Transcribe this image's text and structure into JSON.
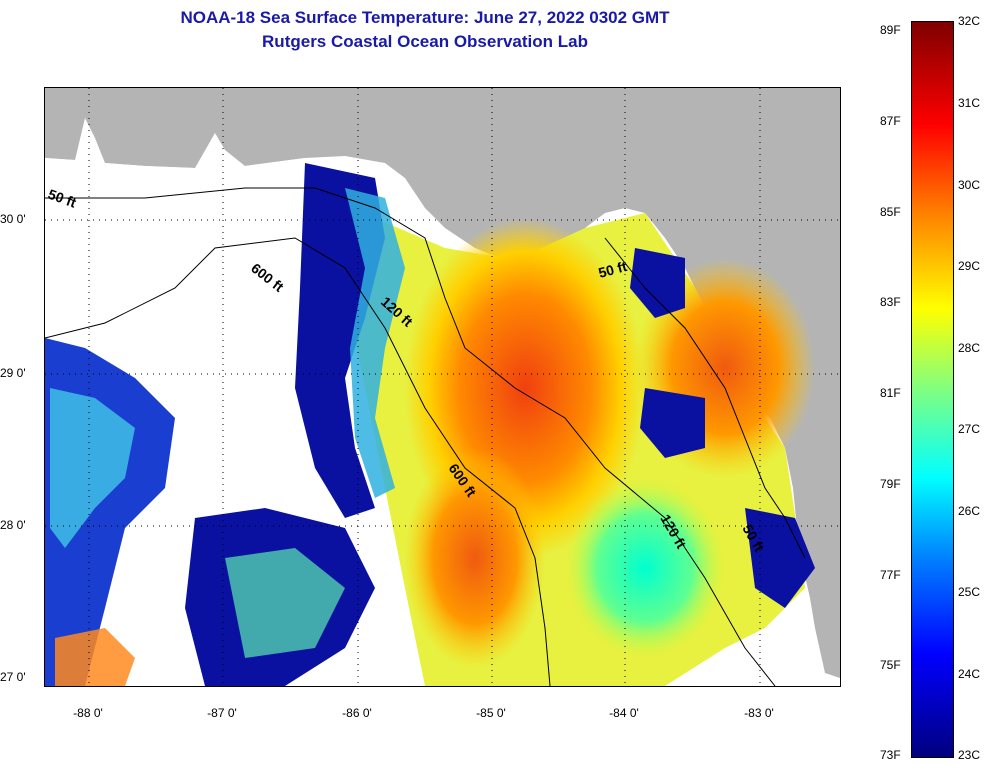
{
  "title": {
    "line1": "NOAA-18 Sea Surface Temperature:  June 27, 2022 0302 GMT",
    "line2": "Rutgers Coastal Ocean Observation Lab"
  },
  "axes": {
    "lon_labels": [
      "-88 0'",
      "-87 0'",
      "-86 0'",
      "-85 0'",
      "-84 0'",
      "-83 0'"
    ],
    "lat_labels": [
      "30 0'",
      "29 0'",
      "28 0'",
      "27 0'"
    ]
  },
  "contours": {
    "labels": [
      "50 ft",
      "600 ft",
      "120 ft",
      "50 ft",
      "600 ft",
      "120 ft",
      "50 ft"
    ]
  },
  "colorbar": {
    "fahrenheit": [
      "89F",
      "87F",
      "85F",
      "83F",
      "81F",
      "79F",
      "77F",
      "75F",
      "73F"
    ],
    "celsius": [
      "32C",
      "31C",
      "30C",
      "29C",
      "28C",
      "27C",
      "26C",
      "25C",
      "24C",
      "23C"
    ],
    "colors": [
      "#00007f",
      "#0000ff",
      "#0080ff",
      "#00ffff",
      "#80ff80",
      "#ffff00",
      "#ff8000",
      "#ff0000",
      "#7f0000"
    ]
  },
  "colors": {
    "title": "#1a1aa8",
    "land": "#b4b4b4",
    "cloud_mask": "#ffffff"
  }
}
